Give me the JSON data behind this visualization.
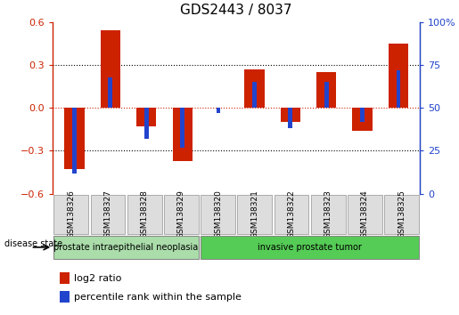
{
  "title": "GDS2443 / 8037",
  "samples": [
    "GSM138326",
    "GSM138327",
    "GSM138328",
    "GSM138329",
    "GSM138320",
    "GSM138321",
    "GSM138322",
    "GSM138323",
    "GSM138324",
    "GSM138325"
  ],
  "log2_ratio": [
    -0.43,
    0.54,
    -0.13,
    -0.37,
    0.0,
    0.27,
    -0.1,
    0.25,
    -0.16,
    0.45
  ],
  "percentile_rank": [
    12,
    68,
    32,
    27,
    47,
    65,
    38,
    65,
    42,
    72
  ],
  "ylim": [
    -0.6,
    0.6
  ],
  "yticks_left": [
    -0.6,
    -0.3,
    0.0,
    0.3,
    0.6
  ],
  "yticks_right": [
    0,
    25,
    50,
    75,
    100
  ],
  "bar_color_red": "#cc2200",
  "bar_color_blue": "#2244cc",
  "disease_groups": [
    {
      "label": "prostate intraepithelial neoplasia",
      "start": 0,
      "end": 4,
      "color": "#aaddaa"
    },
    {
      "label": "invasive prostate tumor",
      "start": 4,
      "end": 10,
      "color": "#55cc55"
    }
  ],
  "legend_red": "log2 ratio",
  "legend_blue": "percentile rank within the sample",
  "red_bar_width": 0.55,
  "blue_bar_width": 0.12
}
